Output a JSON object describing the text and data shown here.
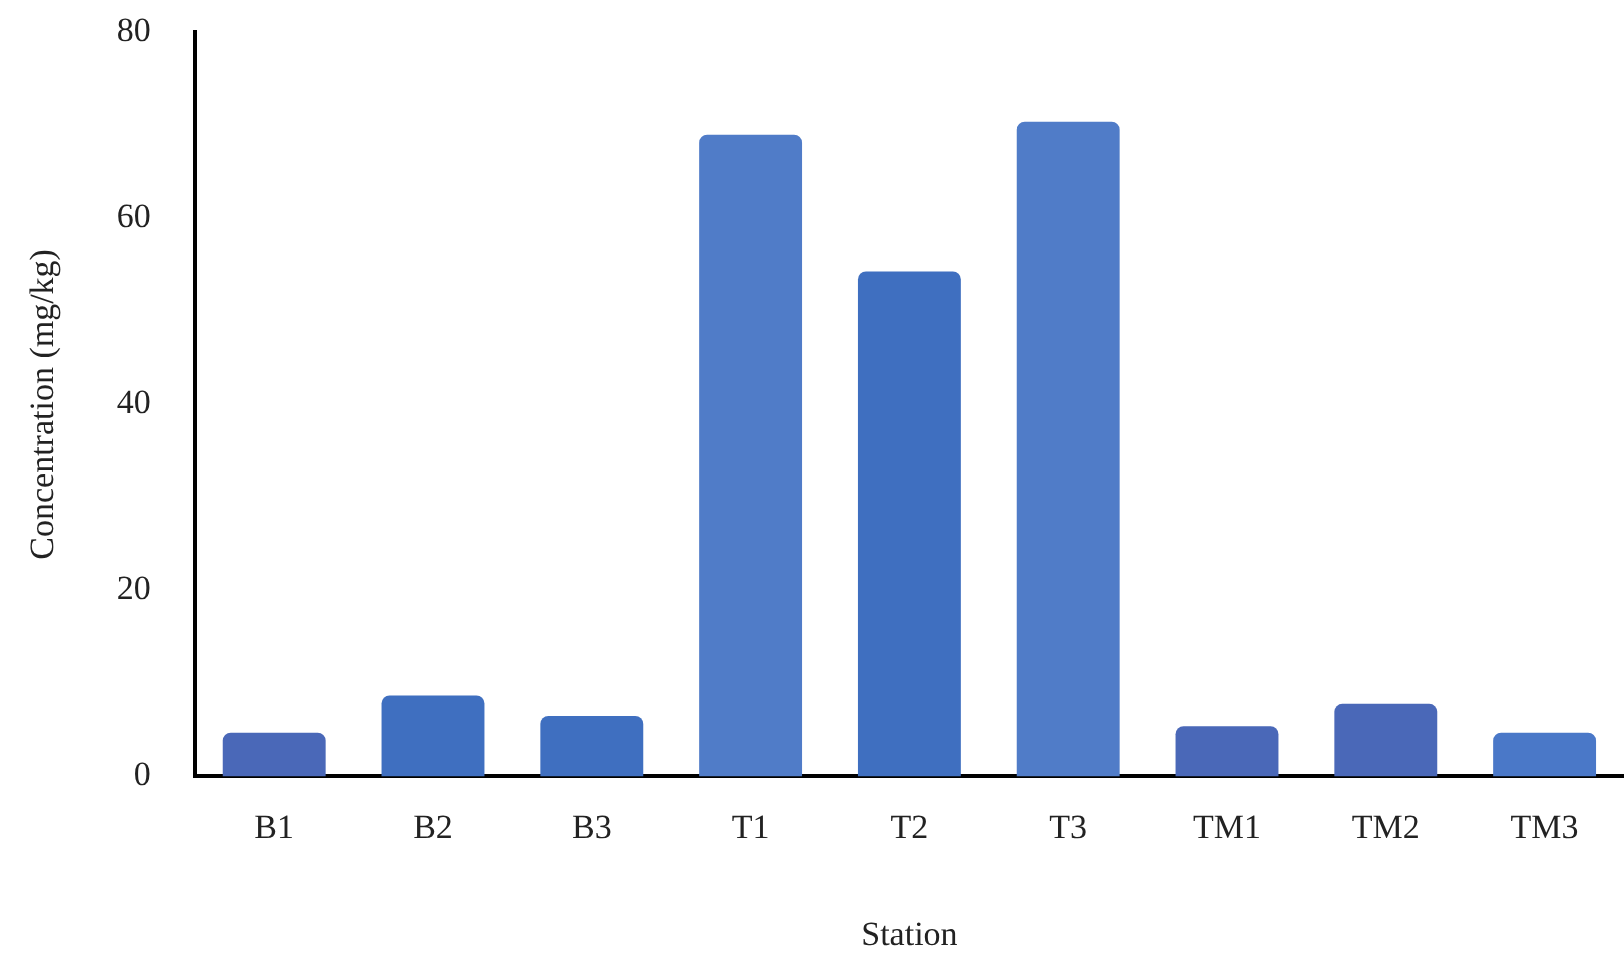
{
  "chart_data": {
    "type": "bar",
    "xlabel": "Station",
    "ylabel": "Concentration (mg/kg)",
    "categories": [
      "B1",
      "B2",
      "B3",
      "T1",
      "T2",
      "T3",
      "TM1",
      "TM2",
      "TM3"
    ],
    "values": [
      4.7,
      8.7,
      6.5,
      69,
      54.3,
      70.4,
      5.4,
      7.8,
      4.7
    ],
    "colors": [
      "#4a68b8",
      "#3f6fc0",
      "#3f6fc0",
      "#507cc8",
      "#3f6fc0",
      "#507cc8",
      "#4a68b8",
      "#4a68b8",
      "#4a78c8"
    ],
    "ylim": [
      0,
      80
    ],
    "yticks": [
      0,
      20,
      40,
      60,
      80
    ],
    "grid": false,
    "legend": false
  }
}
